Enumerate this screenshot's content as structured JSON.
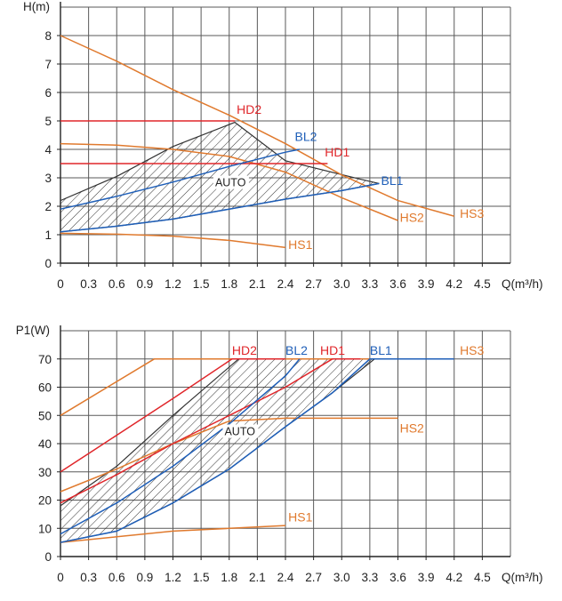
{
  "colors": {
    "grid": "#5a5a5a",
    "axis": "#222222",
    "orange": "#e07a2e",
    "red": "#e0262a",
    "blue": "#1f5fb8",
    "hatch": "#333333",
    "label": "#222222"
  },
  "chart_data": [
    {
      "type": "line",
      "id": "head",
      "title": "",
      "ylabel": "H(m)",
      "xlabel": "Q(m³/h)",
      "xlim": [
        0,
        4.8
      ],
      "ylim": [
        0,
        9
      ],
      "xticks": [
        "0",
        "0.3",
        "0.6",
        "0.9",
        "1.2",
        "1.5",
        "1.8",
        "2.1",
        "2.4",
        "2.7",
        "3.0",
        "3.3",
        "3.6",
        "3.9",
        "4.2",
        "4.5"
      ],
      "yticks": [
        "0",
        "1",
        "2",
        "3",
        "4",
        "5",
        "6",
        "7",
        "8"
      ],
      "grid": true,
      "auto_label": "AUTO",
      "auto_label_at": [
        1.65,
        2.7
      ],
      "auto_region": [
        [
          0,
          1.1
        ],
        [
          0.6,
          1.3
        ],
        [
          1.2,
          1.55
        ],
        [
          1.8,
          1.9
        ],
        [
          2.4,
          2.25
        ],
        [
          3.0,
          2.55
        ],
        [
          3.4,
          2.8
        ],
        [
          3.2,
          2.95
        ],
        [
          2.4,
          3.6
        ],
        [
          1.86,
          4.95
        ],
        [
          1.2,
          4.1
        ],
        [
          0.6,
          3.05
        ],
        [
          0,
          2.2
        ]
      ],
      "series": [
        {
          "name": "HS3",
          "color": "orange",
          "x": [
            0,
            0.6,
            1.2,
            1.8,
            2.4,
            3.0,
            3.6,
            4.2
          ],
          "y": [
            8.0,
            7.1,
            6.1,
            5.2,
            4.2,
            3.1,
            2.2,
            1.65
          ],
          "label_at": [
            4.26,
            1.6
          ]
        },
        {
          "name": "HS2",
          "color": "orange",
          "x": [
            0,
            0.6,
            1.2,
            1.8,
            2.4,
            3.0,
            3.6
          ],
          "y": [
            4.2,
            4.15,
            4.0,
            3.75,
            3.2,
            2.3,
            1.5
          ],
          "label_at": [
            3.62,
            1.45
          ]
        },
        {
          "name": "HS1",
          "color": "orange",
          "x": [
            0,
            0.6,
            1.2,
            1.8,
            2.4
          ],
          "y": [
            1.05,
            1.02,
            0.95,
            0.8,
            0.55
          ],
          "label_at": [
            2.43,
            0.5
          ]
        },
        {
          "name": "HD2",
          "color": "red",
          "x": [
            0,
            1.86
          ],
          "y": [
            5.0,
            5.0
          ],
          "label_at": [
            1.88,
            5.25
          ]
        },
        {
          "name": "HD1",
          "color": "red",
          "x": [
            0,
            2.85
          ],
          "y": [
            3.5,
            3.5
          ],
          "label_at": [
            2.82,
            3.75
          ]
        },
        {
          "name": "BL2",
          "color": "blue",
          "x": [
            0,
            0.6,
            1.2,
            1.8,
            2.4,
            2.55
          ],
          "y": [
            1.9,
            2.35,
            2.85,
            3.4,
            3.9,
            4.0
          ],
          "label_at": [
            2.5,
            4.3
          ]
        },
        {
          "name": "BL1",
          "color": "blue",
          "x": [
            0,
            0.6,
            1.2,
            1.8,
            2.4,
            3.0,
            3.4
          ],
          "y": [
            1.1,
            1.3,
            1.55,
            1.9,
            2.25,
            2.55,
            2.8
          ],
          "label_at": [
            3.42,
            2.75
          ]
        }
      ]
    },
    {
      "type": "line",
      "id": "power",
      "title": "",
      "ylabel": "P1(W)",
      "xlabel": "Q(m³/h)",
      "xlim": [
        0,
        4.8
      ],
      "ylim": [
        0,
        80
      ],
      "xticks": [
        "0",
        "0.3",
        "0.6",
        "0.9",
        "1.2",
        "1.5",
        "1.8",
        "2.1",
        "2.4",
        "2.7",
        "3.0",
        "3.3",
        "3.6",
        "3.9",
        "4.2",
        "4.5"
      ],
      "yticks": [
        "0",
        "10",
        "20",
        "30",
        "40",
        "50",
        "60",
        "70"
      ],
      "grid": true,
      "auto_label": "AUTO",
      "auto_label_at": [
        1.75,
        43
      ],
      "auto_region": [
        [
          0,
          5
        ],
        [
          0.6,
          9
        ],
        [
          1.2,
          19
        ],
        [
          1.8,
          31
        ],
        [
          2.4,
          46
        ],
        [
          2.9,
          58
        ],
        [
          3.35,
          70
        ],
        [
          1.9,
          70
        ],
        [
          1.2,
          50
        ],
        [
          0.6,
          32
        ],
        [
          0,
          18
        ]
      ],
      "series": [
        {
          "name": "HS3",
          "color": "orange",
          "x": [
            0,
            1.0,
            4.2
          ],
          "y": [
            50,
            70,
            70
          ],
          "label_at": [
            4.26,
            71.5
          ]
        },
        {
          "name": "HS2",
          "color": "orange",
          "x": [
            0,
            0.6,
            1.2,
            1.8,
            2.4,
            3.6
          ],
          "y": [
            23,
            31,
            40,
            48,
            49,
            49
          ],
          "label_at": [
            3.62,
            44
          ]
        },
        {
          "name": "HS1",
          "color": "orange",
          "x": [
            0,
            0.6,
            1.2,
            1.8,
            2.4
          ],
          "y": [
            5,
            7,
            9,
            10,
            11
          ],
          "label_at": [
            2.43,
            12.5
          ]
        },
        {
          "name": "HD2",
          "color": "red",
          "x": [
            0,
            0.6,
            1.2,
            1.83,
            2.4
          ],
          "y": [
            30,
            43,
            56,
            70,
            70
          ],
          "label_at": [
            1.83,
            71.5
          ]
        },
        {
          "name": "HD1",
          "color": "red",
          "x": [
            0,
            0.6,
            1.2,
            1.8,
            2.4,
            2.9,
            3.2
          ],
          "y": [
            19,
            29,
            40,
            50,
            60,
            70,
            70
          ],
          "label_at": [
            2.77,
            71.5
          ]
        },
        {
          "name": "BL2",
          "color": "blue",
          "x": [
            0,
            0.6,
            1.2,
            1.8,
            2.4,
            2.55
          ],
          "y": [
            8,
            19,
            32,
            47,
            64,
            70
          ],
          "label_at": [
            2.4,
            71.5
          ]
        },
        {
          "name": "BL1",
          "color": "blue",
          "x": [
            0,
            0.6,
            1.2,
            1.8,
            2.4,
            2.9,
            3.3,
            4.2
          ],
          "y": [
            5,
            9,
            19,
            31,
            46,
            58,
            70,
            70
          ],
          "label_at": [
            3.3,
            71.5
          ]
        }
      ]
    }
  ]
}
